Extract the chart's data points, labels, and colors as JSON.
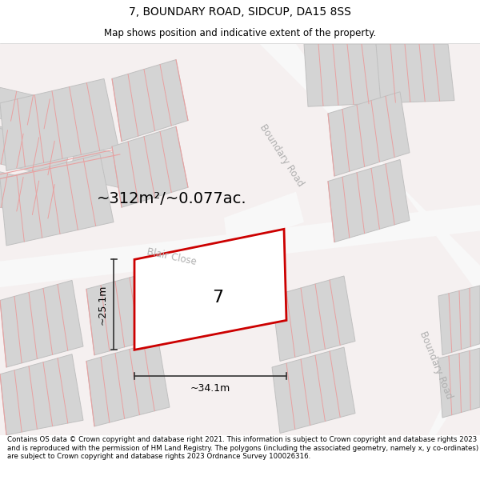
{
  "title": "7, BOUNDARY ROAD, SIDCUP, DA15 8SS",
  "subtitle": "Map shows position and indicative extent of the property.",
  "area_text": "~312m²/~0.077ac.",
  "number_label": "7",
  "dim_width": "~34.1m",
  "dim_height": "~25.1m",
  "road_label_1": "Boundary Road",
  "road_label_2": "Blair Close",
  "road_label_3": "Boundary Road",
  "footer": "Contains OS data © Crown copyright and database right 2021. This information is subject to Crown copyright and database rights 2023 and is reproduced with the permission of HM Land Registry. The polygons (including the associated geometry, namely x, y co-ordinates) are subject to Crown copyright and database rights 2023 Ordnance Survey 100026316.",
  "map_bg": "#f5f0f0",
  "road_color": "#f8f8f8",
  "building_fill": "#d4d4d4",
  "building_edge": "#c0c0c0",
  "pink_line": "#e8a0a0",
  "subject_outline": "#cc0000",
  "subject_fill": "#ffffff",
  "dim_color": "#333333",
  "road_label_color": "#b0b0b0",
  "title_fontsize": 10,
  "subtitle_fontsize": 8.5,
  "area_fontsize": 14,
  "number_fontsize": 16,
  "dim_fontsize": 9,
  "road_fontsize": 8.5,
  "footer_fontsize": 6.2
}
